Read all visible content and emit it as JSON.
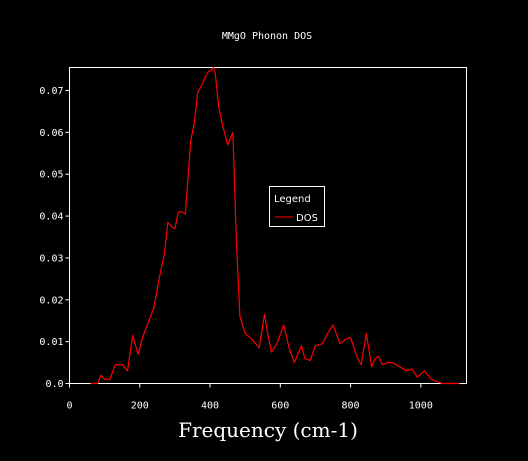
{
  "colors": {
    "background": "#000000",
    "axes": "#ffffff",
    "series": "#ff0000"
  },
  "chart_data": {
    "type": "line",
    "title": "MMgO Phonon DOS",
    "xlabel": "Frequency (cm-1)",
    "ylabel": "",
    "xlim": [
      0,
      1130
    ],
    "ylim": [
      0,
      0.0755
    ],
    "xticks": [
      0,
      200,
      400,
      600,
      800,
      1000
    ],
    "yticks": [
      0.0,
      0.01,
      0.02,
      0.03,
      0.04,
      0.05,
      0.06,
      0.07
    ],
    "ytick_labels": [
      "0.0",
      "0.01",
      "0.02",
      "0.03",
      "0.04",
      "0.05",
      "0.06",
      "0.07"
    ],
    "grid": false,
    "legend": {
      "title": "Legend",
      "placement": "center-right"
    },
    "series": [
      {
        "name": "DOS",
        "color": "#ff0000",
        "x": [
          60,
          80,
          90,
          100,
          115,
          130,
          150,
          165,
          180,
          195,
          210,
          240,
          255,
          270,
          280,
          290,
          300,
          310,
          320,
          330,
          345,
          355,
          365,
          375,
          385,
          395,
          405,
          410,
          415,
          425,
          435,
          450,
          465,
          475,
          485,
          500,
          520,
          540,
          555,
          565,
          575,
          590,
          610,
          625,
          640,
          660,
          670,
          685,
          700,
          720,
          735,
          750,
          770,
          785,
          800,
          820,
          830,
          845,
          860,
          870,
          880,
          890,
          905,
          920,
          940,
          960,
          975,
          990,
          1010,
          1030,
          1045,
          1060,
          1075,
          1090,
          1100,
          1110
        ],
        "y": [
          0.0,
          0.0,
          0.002,
          0.001,
          0.001,
          0.0045,
          0.0045,
          0.003,
          0.0115,
          0.007,
          0.0115,
          0.018,
          0.025,
          0.031,
          0.0385,
          0.0375,
          0.037,
          0.041,
          0.041,
          0.0405,
          0.058,
          0.062,
          0.0695,
          0.071,
          0.073,
          0.0745,
          0.075,
          0.0755,
          0.074,
          0.066,
          0.062,
          0.057,
          0.06,
          0.034,
          0.016,
          0.012,
          0.0105,
          0.0085,
          0.0165,
          0.0115,
          0.0075,
          0.0095,
          0.014,
          0.0085,
          0.005,
          0.009,
          0.006,
          0.0055,
          0.009,
          0.0095,
          0.012,
          0.014,
          0.0095,
          0.0105,
          0.011,
          0.006,
          0.0045,
          0.012,
          0.004,
          0.006,
          0.0065,
          0.0045,
          0.005,
          0.005,
          0.004,
          0.003,
          0.0035,
          0.0015,
          0.003,
          0.001,
          0.0005,
          0.0,
          0.0,
          0.0,
          0.0,
          0.0
        ]
      }
    ]
  }
}
